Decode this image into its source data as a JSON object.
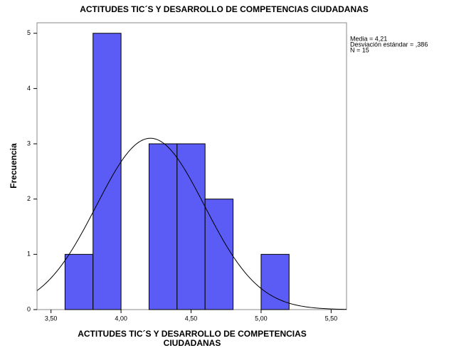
{
  "chart_data": {
    "type": "histogram",
    "title": "ACTITUDES TIC´S Y DESARROLLO DE COMPETENCIAS CIUDADANAS",
    "x_label": [
      "ACTITUDES TIC´S Y DESARROLLO DE COMPETENCIAS",
      "CIUDADANAS"
    ],
    "y_label": "Frecuencia",
    "bins": [
      3.6,
      3.8,
      4.0,
      4.2,
      4.4,
      4.6,
      4.8,
      5.0,
      5.2
    ],
    "values": [
      1,
      5,
      0,
      3,
      3,
      2,
      0,
      1
    ],
    "color": "#5b5bf5",
    "xlim": [
      3.4,
      5.61
    ],
    "ylim": [
      0,
      5.19
    ],
    "xticks": [
      {
        "value": 3.5,
        "label": "3,50"
      },
      {
        "value": 4.0,
        "label": "4,00"
      },
      {
        "value": 4.5,
        "label": "4,50"
      },
      {
        "value": 5.0,
        "label": "5,00"
      },
      {
        "value": 5.5,
        "label": "5,50"
      }
    ],
    "yticks": [
      0,
      1,
      2,
      3,
      4,
      5
    ],
    "stats": [
      {
        "value": 4.21,
        "label": "Media = 4,21"
      },
      {
        "value": 0.386,
        "label": "Desviación estándar = ,386"
      },
      {
        "value": 15,
        "label": "N = 15"
      }
    ],
    "normal_curve": true
  }
}
